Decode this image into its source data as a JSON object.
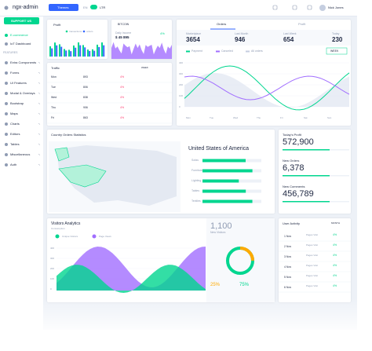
{
  "header": {
    "brand": "ngx-admin",
    "theme": "Themes",
    "lang": "EN",
    "dir": "LTR",
    "user": "Nick Jones"
  },
  "sidebar": {
    "support": "SUPPORT US",
    "items": [
      "E-commerce",
      "IoT Dashboard"
    ],
    "section": "FEATURES",
    "features": [
      "Extra Components",
      "Forms",
      "UI Features",
      "Modal & Overlays",
      "Bootstrap",
      "Maps",
      "Charts",
      "Editors",
      "Tables",
      "Miscellaneous",
      "Auth"
    ]
  },
  "profit": {
    "title": "Profit",
    "legend": [
      "transactions",
      "orders"
    ]
  },
  "bitcoin": {
    "currency": "BITCOIN",
    "label": "Daily Income",
    "value": "$ 45 895",
    "change": "4%"
  },
  "orders": {
    "tabs": [
      "Orders",
      "Profit"
    ],
    "stats": [
      {
        "label": "Marketplace",
        "value": "3654"
      },
      {
        "label": "Last Month",
        "value": "946"
      },
      {
        "label": "Last Week",
        "value": "654"
      },
      {
        "label": "Today",
        "value": "230"
      }
    ],
    "legend": [
      "Payment",
      "Canceled",
      "All orders"
    ],
    "period": "WEEK",
    "days": [
      "Mon",
      "Tue",
      "Wed",
      "Thu",
      "Fri",
      "Sat",
      "Sun"
    ],
    "yaxis": [
      "400",
      "300",
      "200",
      "100",
      "0"
    ]
  },
  "traffic": {
    "title": "Traffic",
    "period": "WEEK",
    "rows": [
      [
        "Mon",
        "893",
        "4%"
      ],
      [
        "Tue",
        "806",
        "4%"
      ],
      [
        "Wed",
        "838",
        "4%"
      ],
      [
        "Thu",
        "906",
        "4%"
      ],
      [
        "Fri",
        "863",
        "4%"
      ]
    ]
  },
  "country": {
    "title": "Country Orders Statistics",
    "country": "United States of America",
    "categories": [
      "Sofas",
      "Furniture",
      "Lighting",
      "Tables",
      "Textiles"
    ]
  },
  "summary": [
    {
      "label": "Today's Profit",
      "value": "572,900"
    },
    {
      "label": "New Orders",
      "value": "6,378"
    },
    {
      "label": "New Comments",
      "value": "456,789"
    }
  ],
  "visitors": {
    "title": "Visitors Analytics",
    "subtitle": "Consumption",
    "legend": [
      "Unique Visitors",
      "Page Views"
    ],
    "yaxis": [
      "400",
      "300",
      "200",
      "100",
      "0"
    ],
    "value": "1,100",
    "caption": "New Visitors",
    "percents": [
      "25%",
      "75%"
    ]
  },
  "activity": {
    "title": "User Activity",
    "period": "MONTH",
    "rows": [
      [
        "1 Nov",
        "Pages Visit",
        "4%"
      ],
      [
        "2 Nov",
        "Pages Visit",
        "4%"
      ],
      [
        "3 Nov",
        "Pages Visit",
        "4%"
      ],
      [
        "4 Nov",
        "Pages Visit",
        "4%"
      ],
      [
        "5 Nov",
        "Pages Visit",
        "4%"
      ],
      [
        "6 Nov",
        "Pages Visit",
        "4%"
      ]
    ]
  }
}
